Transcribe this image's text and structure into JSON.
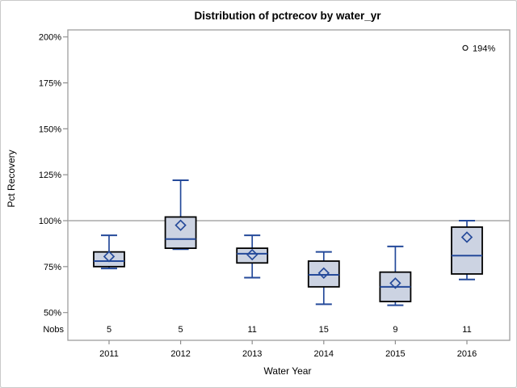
{
  "figure": {
    "background": "#ffffff",
    "border_color": "#c9c9c9"
  },
  "chart_data": {
    "type": "box",
    "title": "Distribution of pctrecov by water_yr",
    "xlabel": "Water Year",
    "ylabel": "Pct Recovery",
    "nobs_label": "Nobs",
    "grid": false,
    "legend": null,
    "reference_line": 100,
    "ylim": [
      35,
      204
    ],
    "yticks": [
      {
        "value": 200,
        "label": "200%"
      },
      {
        "value": 175,
        "label": "175%"
      },
      {
        "value": 150,
        "label": "150%"
      },
      {
        "value": 125,
        "label": "125%"
      },
      {
        "value": 100,
        "label": "100%"
      },
      {
        "value": 75,
        "label": "75%"
      },
      {
        "value": 50,
        "label": "50%"
      }
    ],
    "categories": [
      "2011",
      "2012",
      "2013",
      "2014",
      "2015",
      "2016"
    ],
    "nobs": [
      5,
      5,
      11,
      15,
      9,
      11
    ],
    "series": [
      {
        "category": "2011",
        "n": 5,
        "whisker_low": 74,
        "q1": 75,
        "median": 78,
        "mean": 80.5,
        "q3": 83,
        "whisker_high": 92,
        "outliers": []
      },
      {
        "category": "2012",
        "n": 5,
        "whisker_low": 84.5,
        "q1": 85,
        "median": 90,
        "mean": 97.5,
        "q3": 102,
        "whisker_high": 122,
        "outliers": []
      },
      {
        "category": "2013",
        "n": 11,
        "whisker_low": 69,
        "q1": 77,
        "median": 82,
        "mean": 81.5,
        "q3": 85,
        "whisker_high": 92,
        "outliers": []
      },
      {
        "category": "2014",
        "n": 15,
        "whisker_low": 54.5,
        "q1": 64,
        "median": 70.5,
        "mean": 71.5,
        "q3": 78,
        "whisker_high": 83,
        "outliers": []
      },
      {
        "category": "2015",
        "n": 9,
        "whisker_low": 54,
        "q1": 56,
        "median": 64,
        "mean": 66,
        "q3": 72,
        "whisker_high": 86,
        "outliers": []
      },
      {
        "category": "2016",
        "n": 11,
        "whisker_low": 68,
        "q1": 71,
        "median": 81,
        "mean": 91,
        "q3": 96.5,
        "whisker_high": 100,
        "outliers": [
          {
            "value": 194,
            "label": "194%"
          }
        ]
      }
    ],
    "colors": {
      "box_fill": "#ccd3e2",
      "box_border": "#000000",
      "whisker": "#254a9a",
      "median": "#254a9a",
      "mean_marker": "#254a9a",
      "axis": "#9e9e9e",
      "reference_line": "#a8a8a8",
      "tick": "#8f8f8f",
      "outlier": "#1a1a1a",
      "text": "#000000"
    }
  }
}
